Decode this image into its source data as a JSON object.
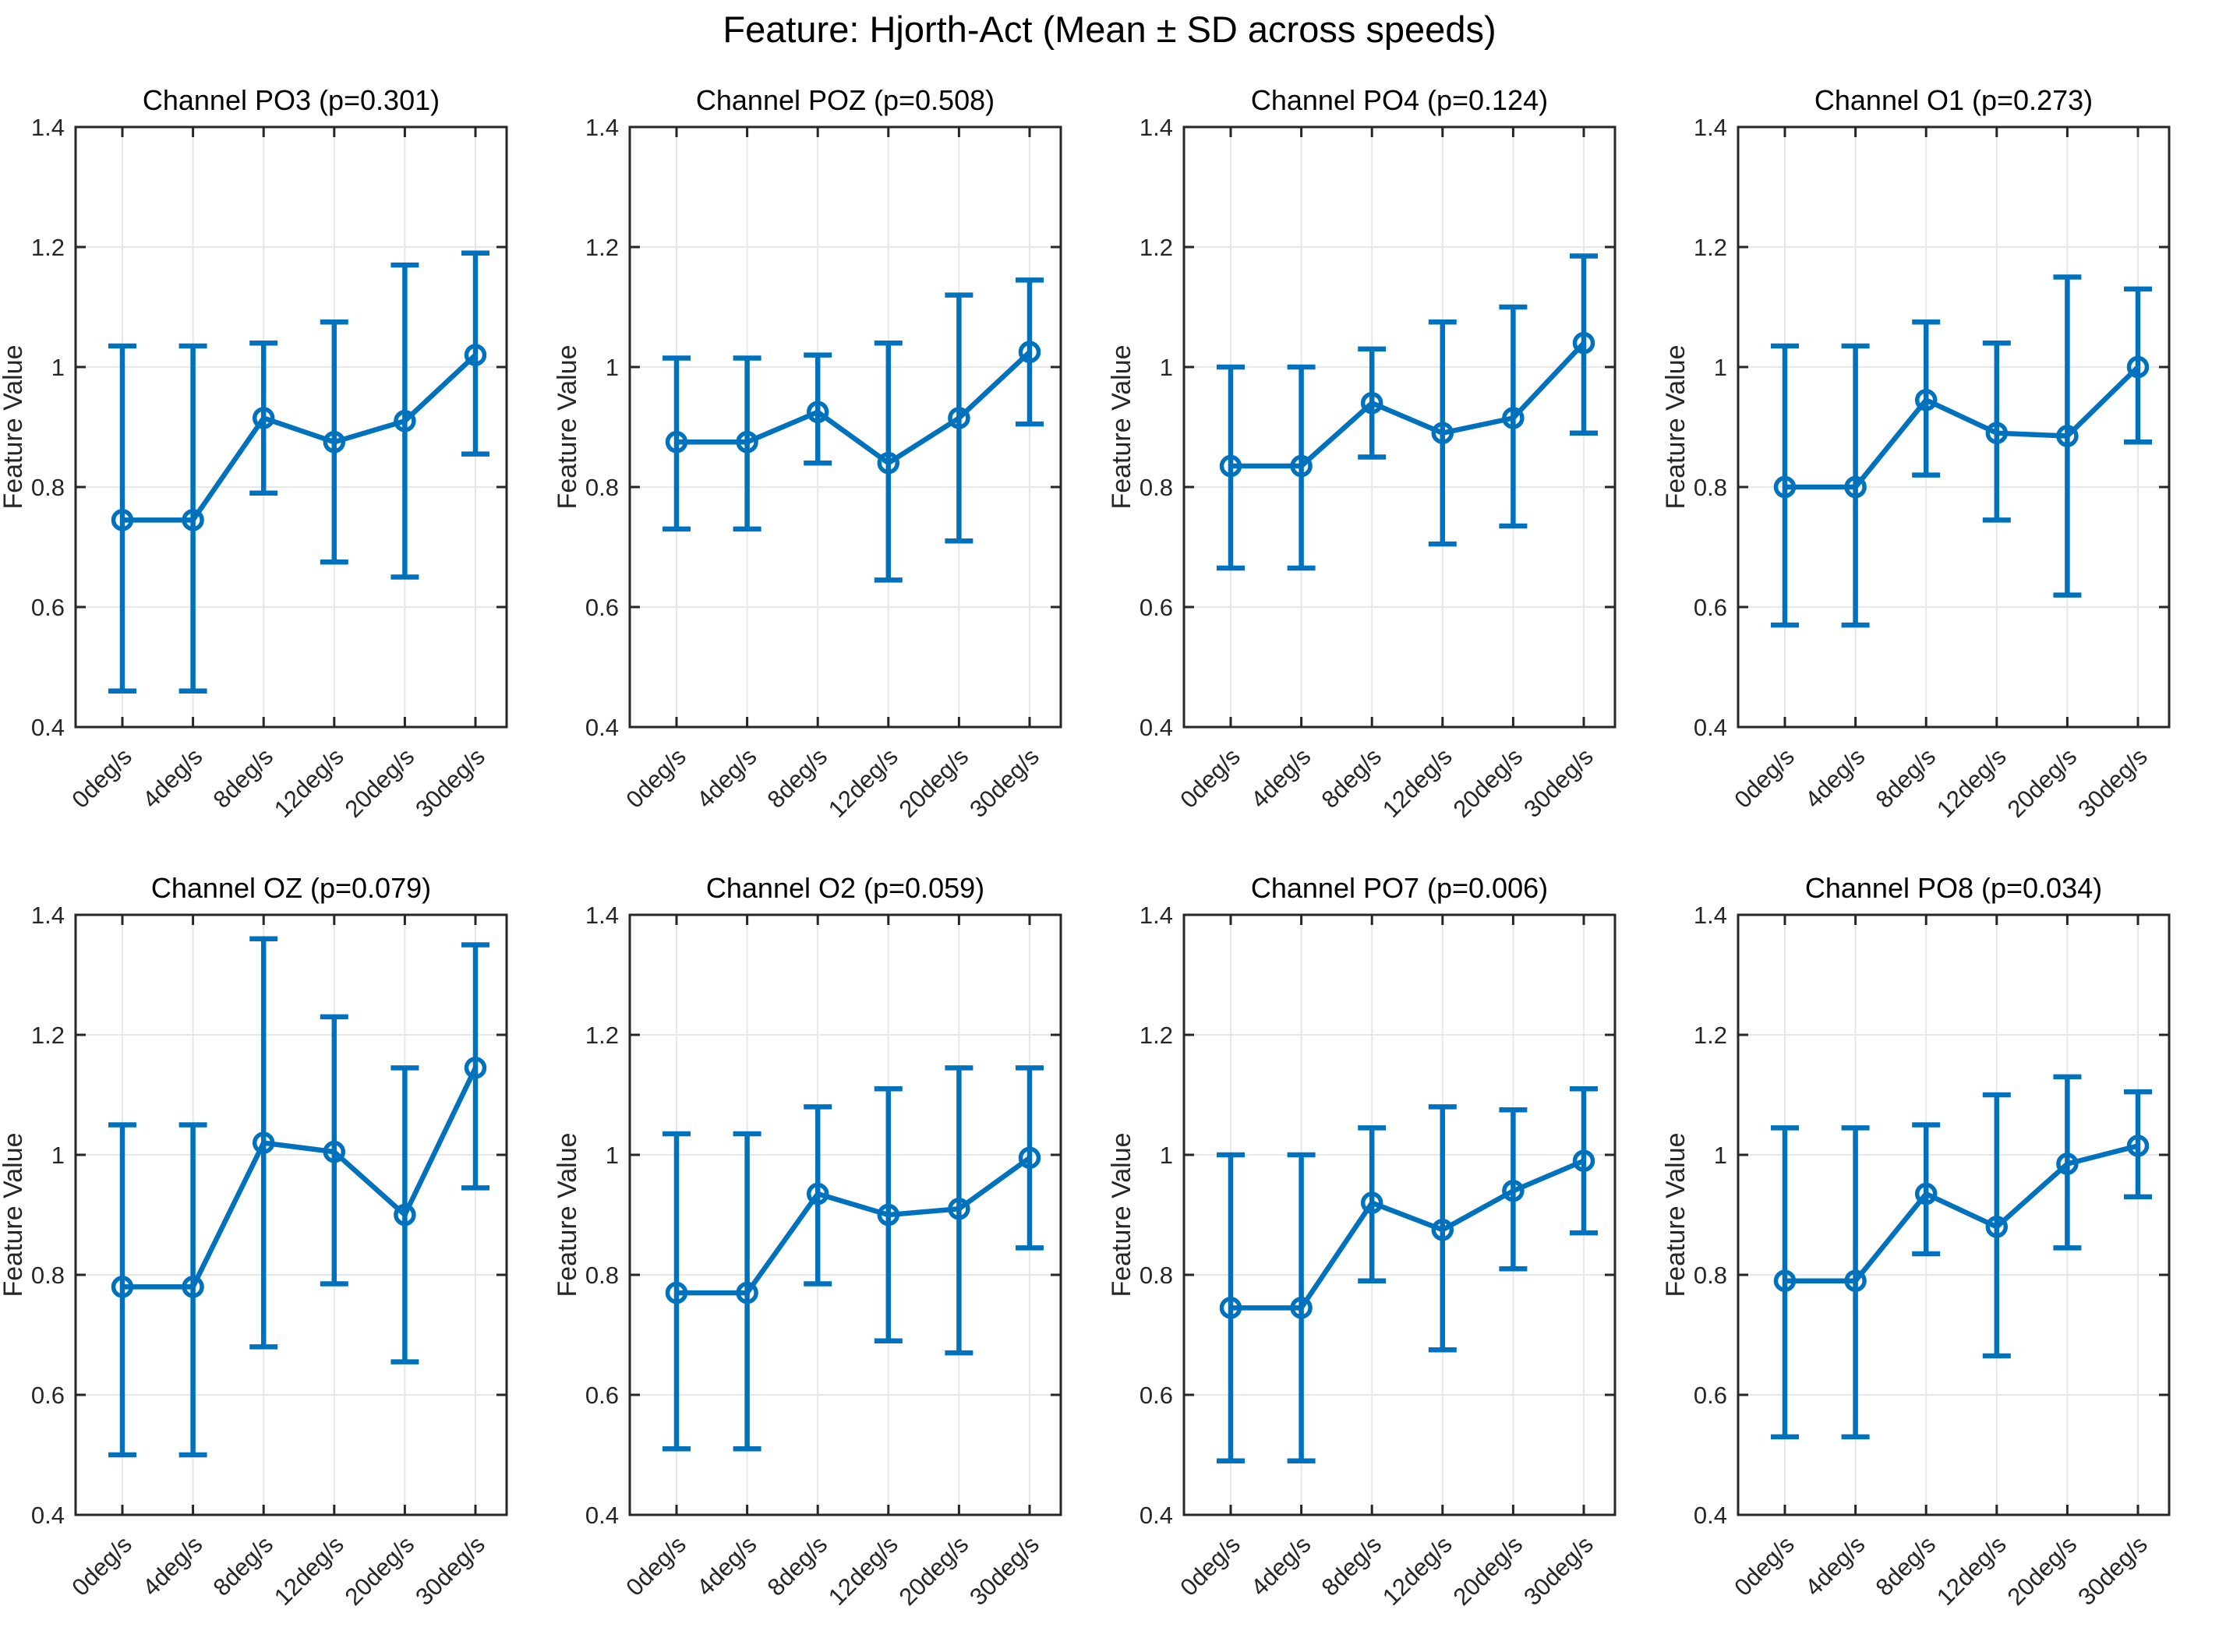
{
  "figure": {
    "title": "Feature: Hjorth-Act (Mean ± SD across speeds)"
  },
  "colors": {
    "series": "#0072BD",
    "axis": "#262626",
    "grid": "#e7e7e7",
    "tick_text": "#262626",
    "title_text": "#000000",
    "background": "#ffffff"
  },
  "chart_data": [
    {
      "type": "line",
      "title": "Channel PO3 (p=0.301)",
      "channel": "PO3",
      "p_value": 0.301,
      "categories": [
        "0deg/s",
        "4deg/s",
        "8deg/s",
        "12deg/s",
        "20deg/s",
        "30deg/s"
      ],
      "means": [
        0.745,
        0.745,
        0.915,
        0.875,
        0.91,
        1.02
      ],
      "lower": [
        0.46,
        0.46,
        0.79,
        0.675,
        0.65,
        0.855
      ],
      "upper": [
        1.035,
        1.035,
        1.04,
        1.075,
        1.17,
        1.19
      ],
      "ylabel": "Feature Value",
      "ylim": [
        0.4,
        1.4
      ],
      "yticks": [
        0.4,
        0.6,
        0.8,
        1,
        1.2,
        1.4
      ],
      "grid": true,
      "legend": null
    },
    {
      "type": "line",
      "title": "Channel POZ (p=0.508)",
      "channel": "POZ",
      "p_value": 0.508,
      "categories": [
        "0deg/s",
        "4deg/s",
        "8deg/s",
        "12deg/s",
        "20deg/s",
        "30deg/s"
      ],
      "means": [
        0.875,
        0.875,
        0.925,
        0.84,
        0.915,
        1.025
      ],
      "lower": [
        0.73,
        0.73,
        0.84,
        0.645,
        0.71,
        0.905
      ],
      "upper": [
        1.015,
        1.015,
        1.02,
        1.04,
        1.12,
        1.145
      ],
      "ylabel": "Feature Value",
      "ylim": [
        0.4,
        1.4
      ],
      "yticks": [
        0.4,
        0.6,
        0.8,
        1,
        1.2,
        1.4
      ],
      "grid": true,
      "legend": null
    },
    {
      "type": "line",
      "title": "Channel PO4 (p=0.124)",
      "channel": "PO4",
      "p_value": 0.124,
      "categories": [
        "0deg/s",
        "4deg/s",
        "8deg/s",
        "12deg/s",
        "20deg/s",
        "30deg/s"
      ],
      "means": [
        0.835,
        0.835,
        0.94,
        0.89,
        0.915,
        1.04
      ],
      "lower": [
        0.665,
        0.665,
        0.85,
        0.705,
        0.735,
        0.89
      ],
      "upper": [
        1.0,
        1.0,
        1.03,
        1.075,
        1.1,
        1.185
      ],
      "ylabel": "Feature Value",
      "ylim": [
        0.4,
        1.4
      ],
      "yticks": [
        0.4,
        0.6,
        0.8,
        1,
        1.2,
        1.4
      ],
      "grid": true,
      "legend": null
    },
    {
      "type": "line",
      "title": "Channel O1 (p=0.273)",
      "channel": "O1",
      "p_value": 0.273,
      "categories": [
        "0deg/s",
        "4deg/s",
        "8deg/s",
        "12deg/s",
        "20deg/s",
        "30deg/s"
      ],
      "means": [
        0.8,
        0.8,
        0.945,
        0.89,
        0.885,
        1.0
      ],
      "lower": [
        0.57,
        0.57,
        0.82,
        0.745,
        0.62,
        0.875
      ],
      "upper": [
        1.035,
        1.035,
        1.075,
        1.04,
        1.15,
        1.13
      ],
      "ylabel": "Feature Value",
      "ylim": [
        0.4,
        1.4
      ],
      "yticks": [
        0.4,
        0.6,
        0.8,
        1,
        1.2,
        1.4
      ],
      "grid": true,
      "legend": null
    },
    {
      "type": "line",
      "title": "Channel OZ (p=0.079)",
      "channel": "OZ",
      "p_value": 0.079,
      "categories": [
        "0deg/s",
        "4deg/s",
        "8deg/s",
        "12deg/s",
        "20deg/s",
        "30deg/s"
      ],
      "means": [
        0.78,
        0.78,
        1.02,
        1.005,
        0.9,
        1.145
      ],
      "lower": [
        0.5,
        0.5,
        0.68,
        0.785,
        0.655,
        0.945
      ],
      "upper": [
        1.05,
        1.05,
        1.36,
        1.23,
        1.145,
        1.35
      ],
      "ylabel": "Feature Value",
      "ylim": [
        0.4,
        1.4
      ],
      "yticks": [
        0.4,
        0.6,
        0.8,
        1,
        1.2,
        1.4
      ],
      "grid": true,
      "legend": null
    },
    {
      "type": "line",
      "title": "Channel O2 (p=0.059)",
      "channel": "O2",
      "p_value": 0.059,
      "categories": [
        "0deg/s",
        "4deg/s",
        "8deg/s",
        "12deg/s",
        "20deg/s",
        "30deg/s"
      ],
      "means": [
        0.77,
        0.77,
        0.935,
        0.9,
        0.91,
        0.995
      ],
      "lower": [
        0.51,
        0.51,
        0.785,
        0.69,
        0.67,
        0.845
      ],
      "upper": [
        1.035,
        1.035,
        1.08,
        1.11,
        1.145,
        1.145
      ],
      "ylabel": "Feature Value",
      "ylim": [
        0.4,
        1.4
      ],
      "yticks": [
        0.4,
        0.6,
        0.8,
        1,
        1.2,
        1.4
      ],
      "grid": true,
      "legend": null
    },
    {
      "type": "line",
      "title": "Channel PO7 (p=0.006)",
      "channel": "PO7",
      "p_value": 0.006,
      "categories": [
        "0deg/s",
        "4deg/s",
        "8deg/s",
        "12deg/s",
        "20deg/s",
        "30deg/s"
      ],
      "means": [
        0.745,
        0.745,
        0.92,
        0.875,
        0.94,
        0.99
      ],
      "lower": [
        0.49,
        0.49,
        0.79,
        0.675,
        0.81,
        0.87
      ],
      "upper": [
        1.0,
        1.0,
        1.045,
        1.08,
        1.075,
        1.11
      ],
      "ylabel": "Feature Value",
      "ylim": [
        0.4,
        1.4
      ],
      "yticks": [
        0.4,
        0.6,
        0.8,
        1,
        1.2,
        1.4
      ],
      "grid": true,
      "legend": null
    },
    {
      "type": "line",
      "title": "Channel PO8 (p=0.034)",
      "channel": "PO8",
      "p_value": 0.034,
      "categories": [
        "0deg/s",
        "4deg/s",
        "8deg/s",
        "12deg/s",
        "20deg/s",
        "30deg/s"
      ],
      "means": [
        0.79,
        0.79,
        0.935,
        0.88,
        0.985,
        1.015
      ],
      "lower": [
        0.53,
        0.53,
        0.835,
        0.665,
        0.845,
        0.93
      ],
      "upper": [
        1.045,
        1.045,
        1.05,
        1.1,
        1.13,
        1.105
      ],
      "ylabel": "Feature Value",
      "ylim": [
        0.4,
        1.4
      ],
      "yticks": [
        0.4,
        0.6,
        0.8,
        1,
        1.2,
        1.4
      ],
      "grid": true,
      "legend": null
    }
  ]
}
